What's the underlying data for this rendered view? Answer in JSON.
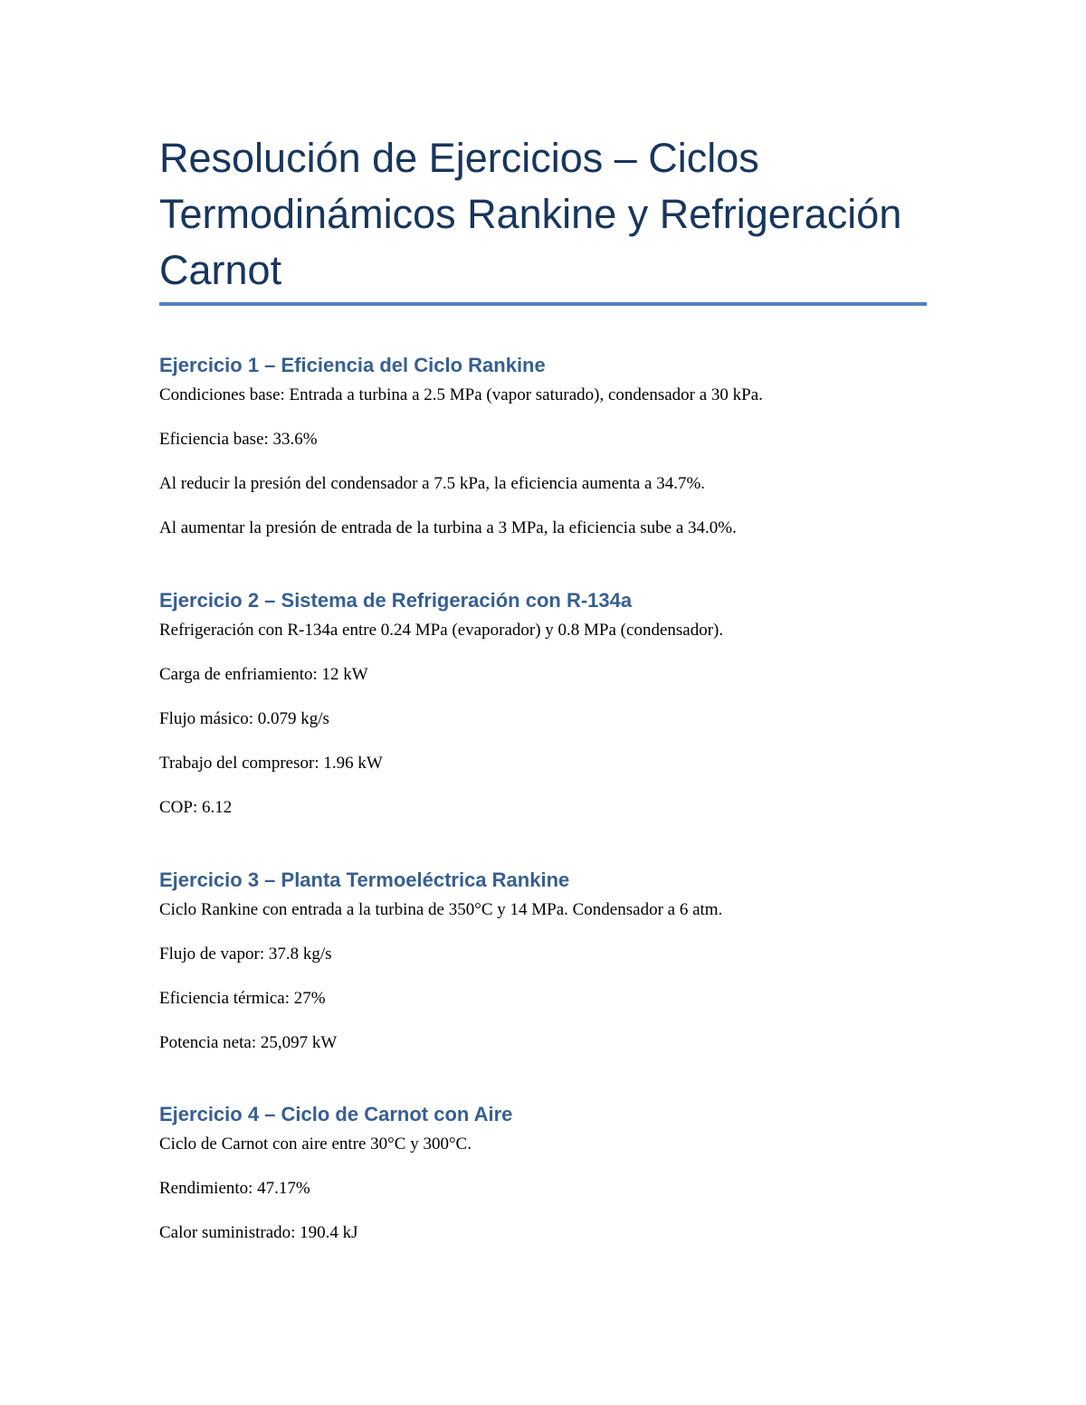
{
  "title": "Resolución de Ejercicios – Ciclos Termodinámicos Rankine y Refrigeración Carnot",
  "accent_color": "#4f81bd",
  "heading_color": "#365f91",
  "sections": [
    {
      "heading": "Ejercicio 1 – Eficiencia del Ciclo Rankine",
      "lines": [
        "Condiciones base: Entrada a turbina a 2.5 MPa (vapor saturado), condensador a 30 kPa.",
        "Eficiencia base: 33.6%",
        "Al reducir la presión del condensador a 7.5 kPa, la eficiencia aumenta a 34.7%.",
        "Al aumentar la presión de entrada de la turbina a 3 MPa, la eficiencia sube a 34.0%."
      ]
    },
    {
      "heading": "Ejercicio 2 – Sistema de Refrigeración con R-134a",
      "lines": [
        "Refrigeración con R-134a entre 0.24 MPa (evaporador) y 0.8 MPa (condensador).",
        "Carga de enfriamiento: 12 kW",
        "Flujo másico: 0.079 kg/s",
        "Trabajo del compresor: 1.96 kW",
        "COP: 6.12"
      ]
    },
    {
      "heading": "Ejercicio 3 – Planta Termoeléctrica Rankine",
      "lines": [
        "Ciclo Rankine con entrada a la turbina de 350°C y 14 MPa. Condensador a 6 atm.",
        "Flujo de vapor: 37.8 kg/s",
        "Eficiencia térmica: 27%",
        "Potencia neta: 25,097 kW"
      ]
    },
    {
      "heading": "Ejercicio 4 – Ciclo de Carnot con Aire",
      "lines": [
        "Ciclo de Carnot con aire entre 30°C y 300°C.",
        "Rendimiento: 47.17%",
        "Calor suministrado: 190.4 kJ"
      ]
    }
  ]
}
